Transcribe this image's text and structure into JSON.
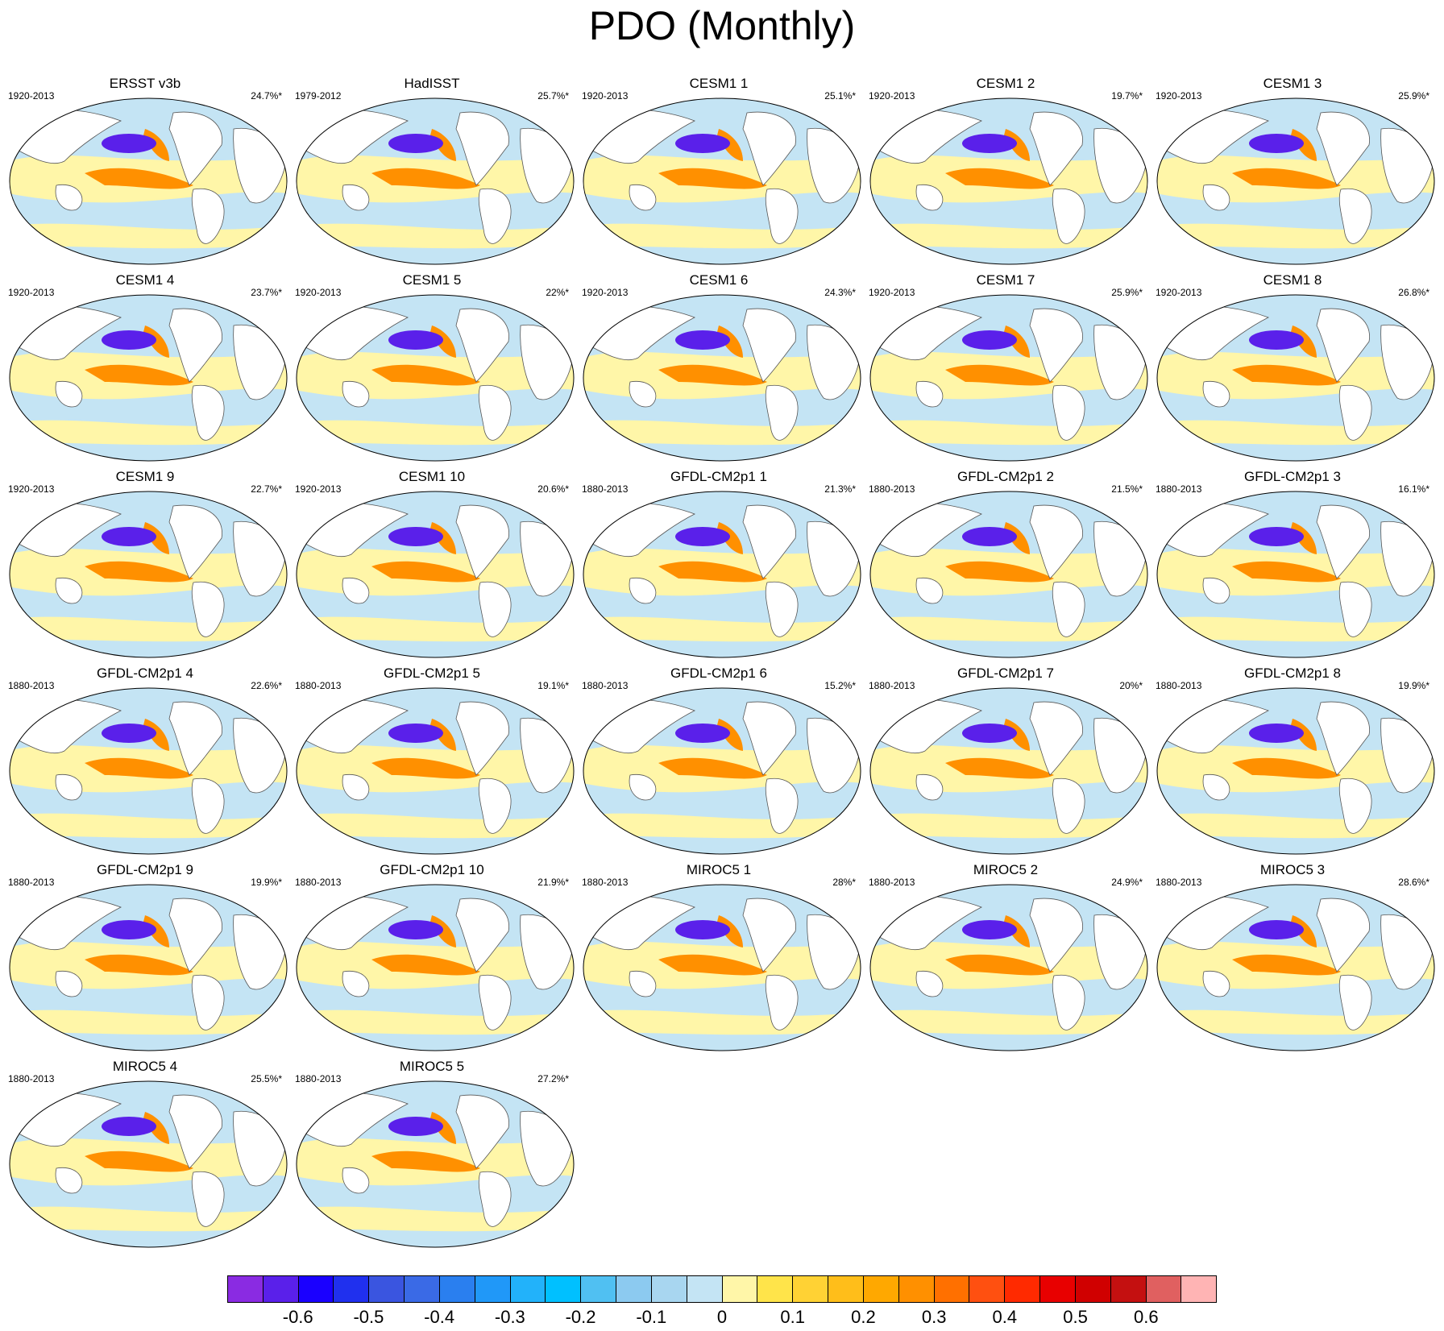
{
  "title": "PDO (Monthly)",
  "panels": [
    {
      "name": "ERSST v3b",
      "period": "1920-2013",
      "variance": "24.7%*"
    },
    {
      "name": "HadISST",
      "period": "1979-2012",
      "variance": "25.7%*"
    },
    {
      "name": "CESM1 1",
      "period": "1920-2013",
      "variance": "25.1%*"
    },
    {
      "name": "CESM1 2",
      "period": "1920-2013",
      "variance": "19.7%*"
    },
    {
      "name": "CESM1 3",
      "period": "1920-2013",
      "variance": "25.9%*"
    },
    {
      "name": "CESM1 4",
      "period": "1920-2013",
      "variance": "23.7%*"
    },
    {
      "name": "CESM1 5",
      "period": "1920-2013",
      "variance": "22%*"
    },
    {
      "name": "CESM1 6",
      "period": "1920-2013",
      "variance": "24.3%*"
    },
    {
      "name": "CESM1 7",
      "period": "1920-2013",
      "variance": "25.9%*"
    },
    {
      "name": "CESM1 8",
      "period": "1920-2013",
      "variance": "26.8%*"
    },
    {
      "name": "CESM1 9",
      "period": "1920-2013",
      "variance": "22.7%*"
    },
    {
      "name": "CESM1 10",
      "period": "1920-2013",
      "variance": "20.6%*"
    },
    {
      "name": "GFDL-CM2p1 1",
      "period": "1880-2013",
      "variance": "21.3%*"
    },
    {
      "name": "GFDL-CM2p1 2",
      "period": "1880-2013",
      "variance": "21.5%*"
    },
    {
      "name": "GFDL-CM2p1 3",
      "period": "1880-2013",
      "variance": "16.1%*"
    },
    {
      "name": "GFDL-CM2p1 4",
      "period": "1880-2013",
      "variance": "22.6%*"
    },
    {
      "name": "GFDL-CM2p1 5",
      "period": "1880-2013",
      "variance": "19.1%*"
    },
    {
      "name": "GFDL-CM2p1 6",
      "period": "1880-2013",
      "variance": "15.2%*"
    },
    {
      "name": "GFDL-CM2p1 7",
      "period": "1880-2013",
      "variance": "20%*"
    },
    {
      "name": "GFDL-CM2p1 8",
      "period": "1880-2013",
      "variance": "19.9%*"
    },
    {
      "name": "GFDL-CM2p1 9",
      "period": "1880-2013",
      "variance": "19.9%*"
    },
    {
      "name": "GFDL-CM2p1 10",
      "period": "1880-2013",
      "variance": "21.9%*"
    },
    {
      "name": "MIROC5 1",
      "period": "1880-2013",
      "variance": "28%*"
    },
    {
      "name": "MIROC5 2",
      "period": "1880-2013",
      "variance": "24.9%*"
    },
    {
      "name": "MIROC5 3",
      "period": "1880-2013",
      "variance": "28.6%*"
    },
    {
      "name": "MIROC5 4",
      "period": "1880-2013",
      "variance": "25.5%*"
    },
    {
      "name": "MIROC5 5",
      "period": "1880-2013",
      "variance": "27.2%*"
    }
  ],
  "colorbar": {
    "colors": [
      "#8a2be2",
      "#5a20ea",
      "#1a00ff",
      "#2030ee",
      "#3a55e0",
      "#3a6ae6",
      "#2a7fef",
      "#2098f8",
      "#22b2fa",
      "#00c0ff",
      "#50c0f2",
      "#8ccaf0",
      "#a8d6f0",
      "#c4e4f4",
      "#fff6a8",
      "#ffe44a",
      "#ffd234",
      "#ffbe1a",
      "#ffa800",
      "#ff9000",
      "#ff7000",
      "#ff5010",
      "#ff2a00",
      "#e80000",
      "#d00000",
      "#c41010",
      "#e06060",
      "#ffb4b4"
    ],
    "tick_labels": [
      "-0.6",
      "-0.5",
      "-0.4",
      "-0.3",
      "-0.2",
      "-0.1",
      "0",
      "0.1",
      "0.2",
      "0.3",
      "0.4",
      "0.5",
      "0.6"
    ]
  },
  "map_colors": {
    "land": "#ffffff",
    "ocean_cool": "#c4e4f4",
    "ocean_warm": "#fff6a8",
    "cold_core": "#5a20ea",
    "warm_core": "#ff9000",
    "coast": "#555555"
  }
}
